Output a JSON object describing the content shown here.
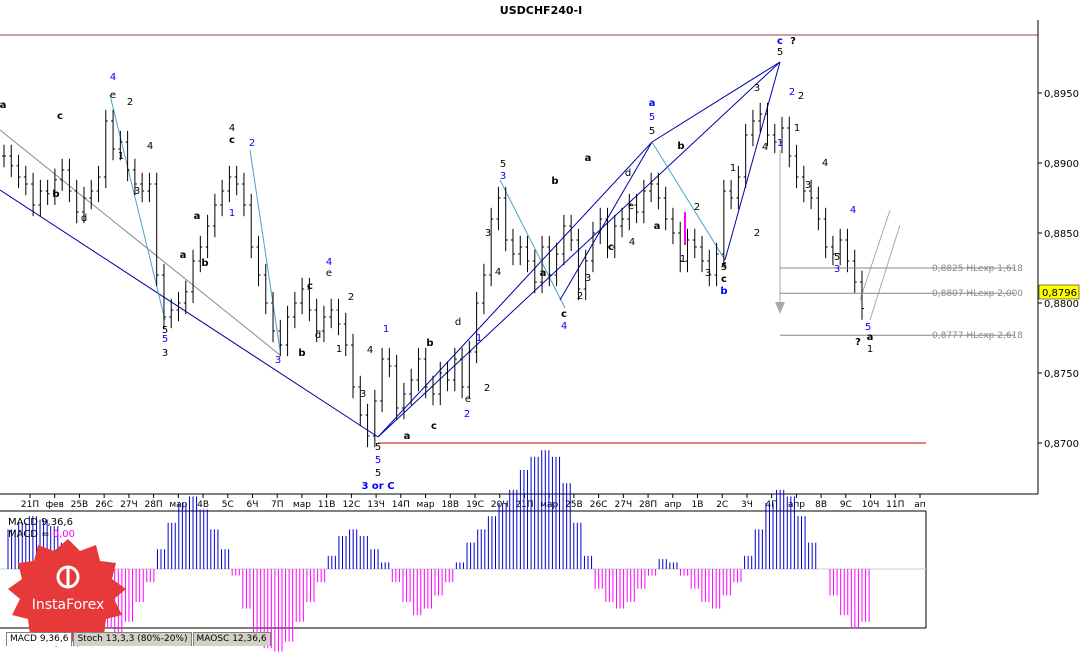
{
  "window": {
    "title": "USDCHF240-I"
  },
  "chart_data": {
    "type": "candlestick",
    "title": "USDCHF240-I",
    "ylim": [
      0.8665,
      0.899
    ],
    "price_ticks": [
      "0,8950",
      "0,8900",
      "0,8850",
      "0,8800",
      "0,8750",
      "0,8700"
    ],
    "price_tick_values": [
      0.895,
      0.89,
      0.885,
      0.88,
      0.875,
      0.87
    ],
    "current_price": "0,8796",
    "date_labels": [
      "21П",
      "фев",
      "25В",
      "26С",
      "27Ч",
      "28П",
      "мар",
      "4В",
      "5С",
      "6Ч",
      "7П",
      "мар",
      "11В",
      "12С",
      "13Ч",
      "14П",
      "мар",
      "18В",
      "19С",
      "20Ч",
      "21П",
      "мар",
      "25В",
      "26С",
      "27Ч",
      "28П",
      "апр",
      "1В",
      "2С",
      "3Ч",
      "4П",
      "апр",
      "8В",
      "9С",
      "10Ч",
      "11П",
      "ап"
    ],
    "support_line_value": 0.87,
    "hlexp_levels": [
      {
        "label": "0,8825 HLexp 1,618",
        "value": 0.8825
      },
      {
        "label": "0,8807 HLexp 2,000",
        "value": 0.8807
      },
      {
        "label": "0,8777 HLexp 2,618",
        "value": 0.8777
      }
    ],
    "close_series": [
      0.8905,
      0.8898,
      0.889,
      0.8885,
      0.887,
      0.888,
      0.8878,
      0.8888,
      0.8895,
      0.888,
      0.8865,
      0.8875,
      0.888,
      0.889,
      0.893,
      0.891,
      0.8915,
      0.8895,
      0.8885,
      0.888,
      0.8885,
      0.882,
      0.879,
      0.8795,
      0.88,
      0.8808,
      0.883,
      0.884,
      0.8855,
      0.887,
      0.888,
      0.889,
      0.8885,
      0.887,
      0.884,
      0.882,
      0.88,
      0.878,
      0.877,
      0.879,
      0.88,
      0.881,
      0.8795,
      0.878,
      0.879,
      0.8795,
      0.8785,
      0.877,
      0.874,
      0.872,
      0.8705,
      0.873,
      0.876,
      0.8755,
      0.8725,
      0.8735,
      0.8745,
      0.876,
      0.874,
      0.8735,
      0.875,
      0.8745,
      0.876,
      0.874,
      0.8765,
      0.88,
      0.882,
      0.886,
      0.8875,
      0.8845,
      0.8835,
      0.884,
      0.883,
      0.8815,
      0.884,
      0.882,
      0.8835,
      0.8855,
      0.8845,
      0.881,
      0.883,
      0.885,
      0.886,
      0.884,
      0.8855,
      0.886,
      0.887,
      0.8865,
      0.888,
      0.8885,
      0.8875,
      0.886,
      0.885,
      0.883,
      0.8845,
      0.884,
      0.883,
      0.882,
      0.8835,
      0.888,
      0.8875,
      0.889,
      0.892,
      0.893,
      0.8935,
      0.892,
      0.8915,
      0.8925,
      0.8905,
      0.889,
      0.888,
      0.8875,
      0.886,
      0.884,
      0.8835,
      0.8845,
      0.883,
      0.8815,
      0.8796
    ],
    "macd_label": "MACD 9,36,6",
    "macd_value_label": "MACD = ",
    "macd_value": "0,00",
    "macd_series": [
      0.0012,
      0.0014,
      0.0016,
      0.0015,
      0.0013,
      0.0008,
      0.0003,
      -0.0004,
      -0.0012,
      -0.0018,
      -0.002,
      -0.0016,
      -0.001,
      -0.0004,
      0.0006,
      0.0014,
      0.002,
      0.0022,
      0.0018,
      0.0012,
      0.0006,
      -0.0002,
      -0.0012,
      -0.002,
      -0.0024,
      -0.0025,
      -0.0022,
      -0.0016,
      -0.001,
      -0.0004,
      0.0004,
      0.001,
      0.0012,
      0.001,
      0.0006,
      0.0002,
      -0.0004,
      -0.001,
      -0.0014,
      -0.0012,
      -0.0008,
      -0.0004,
      0.0002,
      0.0008,
      0.0012,
      0.0016,
      0.002,
      0.0024,
      0.003,
      0.0034,
      0.0036,
      0.0034,
      0.0026,
      0.0014,
      0.0004,
      -0.0006,
      -0.001,
      -0.0012,
      -0.001,
      -0.0006,
      -0.0002,
      0.0003,
      0.0002,
      -0.0002,
      -0.0006,
      -0.001,
      -0.0012,
      -0.0008,
      -0.0004,
      0.0004,
      0.0012,
      0.002,
      0.0024,
      0.0022,
      0.0016,
      0.0008,
      0.0,
      -0.0008,
      -0.0014,
      -0.0018,
      -0.0016
    ]
  },
  "wave_labels": [
    {
      "t": "a",
      "c": "#000"
    },
    {
      "t": "c",
      "c": "#000"
    },
    {
      "t": "4",
      "c": "#00f"
    },
    {
      "t": "e",
      "c": "#000"
    },
    {
      "t": "2",
      "c": "#000"
    },
    {
      "t": "1",
      "c": "#000"
    },
    {
      "t": "d",
      "c": "#000"
    },
    {
      "t": "b",
      "c": "#000"
    },
    {
      "t": "3",
      "c": "#000"
    },
    {
      "t": "4",
      "c": "#000"
    },
    {
      "t": "5",
      "c": "#000"
    },
    {
      "t": "5",
      "c": "#00f"
    },
    {
      "t": "3",
      "c": "#000"
    },
    {
      "t": "4",
      "c": "#000"
    },
    {
      "t": "c",
      "c": "#000"
    },
    {
      "t": "2",
      "c": "#00f"
    },
    {
      "t": "1",
      "c": "#00f"
    },
    {
      "t": "a",
      "c": "#000"
    },
    {
      "t": "b",
      "c": "#000"
    },
    {
      "t": "a",
      "c": "#000"
    },
    {
      "t": "3",
      "c": "#00f"
    },
    {
      "t": "b",
      "c": "#000"
    },
    {
      "t": "4",
      "c": "#00f"
    },
    {
      "t": "e",
      "c": "#000"
    },
    {
      "t": "c",
      "c": "#000"
    },
    {
      "t": "d",
      "c": "#000"
    },
    {
      "t": "1",
      "c": "#000"
    },
    {
      "t": "2",
      "c": "#000"
    },
    {
      "t": "3",
      "c": "#000"
    },
    {
      "t": "4",
      "c": "#000"
    },
    {
      "t": "5",
      "c": "#000"
    },
    {
      "t": "5",
      "c": "#00f"
    },
    {
      "t": "5",
      "c": "#000"
    },
    {
      "t": "3 or C",
      "c": "#00f"
    },
    {
      "t": "1",
      "c": "#00f"
    },
    {
      "t": "a",
      "c": "#000"
    },
    {
      "t": "b",
      "c": "#000"
    },
    {
      "t": "c",
      "c": "#000"
    },
    {
      "t": "d",
      "c": "#000"
    },
    {
      "t": "e",
      "c": "#000"
    },
    {
      "t": "1",
      "c": "#00f"
    },
    {
      "t": "2",
      "c": "#00f"
    },
    {
      "t": "2",
      "c": "#000"
    },
    {
      "t": "3",
      "c": "#000"
    },
    {
      "t": "4",
      "c": "#000"
    },
    {
      "t": "5",
      "c": "#000"
    },
    {
      "t": "3",
      "c": "#00f"
    },
    {
      "t": "a",
      "c": "#000"
    },
    {
      "t": "c",
      "c": "#000"
    },
    {
      "t": "4",
      "c": "#00f"
    },
    {
      "t": "b",
      "c": "#000"
    },
    {
      "t": "2",
      "c": "#000"
    },
    {
      "t": "3",
      "c": "#000"
    },
    {
      "t": "a",
      "c": "#000"
    },
    {
      "t": "c",
      "c": "#000"
    },
    {
      "t": "e",
      "c": "#000"
    },
    {
      "t": "4",
      "c": "#000"
    },
    {
      "t": "d",
      "c": "#000"
    },
    {
      "t": "a",
      "c": "#00f"
    },
    {
      "t": "5",
      "c": "#00f"
    },
    {
      "t": "5",
      "c": "#000"
    },
    {
      "t": "b",
      "c": "#000"
    },
    {
      "t": "a",
      "c": "#000"
    },
    {
      "t": "2",
      "c": "#000"
    },
    {
      "t": "1",
      "c": "#000"
    },
    {
      "t": "3",
      "c": "#000"
    },
    {
      "t": "4",
      "c": "#000"
    },
    {
      "t": "5",
      "c": "#000"
    },
    {
      "t": "c",
      "c": "#000"
    },
    {
      "t": "b",
      "c": "#00f"
    },
    {
      "t": "1",
      "c": "#000"
    },
    {
      "t": "2",
      "c": "#000"
    },
    {
      "t": "3",
      "c": "#000"
    },
    {
      "t": "4",
      "c": "#000"
    },
    {
      "t": "1",
      "c": "#00f"
    },
    {
      "t": "c",
      "c": "#00f"
    },
    {
      "t": "?",
      "c": "#000"
    },
    {
      "t": "5",
      "c": "#000"
    },
    {
      "t": "2",
      "c": "#00f"
    },
    {
      "t": "2",
      "c": "#000"
    },
    {
      "t": "1",
      "c": "#000"
    },
    {
      "t": "3",
      "c": "#000"
    },
    {
      "t": "4",
      "c": "#000"
    },
    {
      "t": "5",
      "c": "#000"
    },
    {
      "t": "3",
      "c": "#00f"
    },
    {
      "t": "4",
      "c": "#00f"
    },
    {
      "t": "5",
      "c": "#00f"
    },
    {
      "t": "?",
      "c": "#000"
    },
    {
      "t": "a",
      "c": "#000"
    },
    {
      "t": "1",
      "c": "#000"
    }
  ],
  "logo": {
    "text": "InstaForex"
  },
  "tabs": [
    {
      "label": "MACD 9,36,6"
    },
    {
      "label": "Stoch 13,3,3 (80%-20%)"
    },
    {
      "label": "MAOSC 12,36,6"
    }
  ]
}
